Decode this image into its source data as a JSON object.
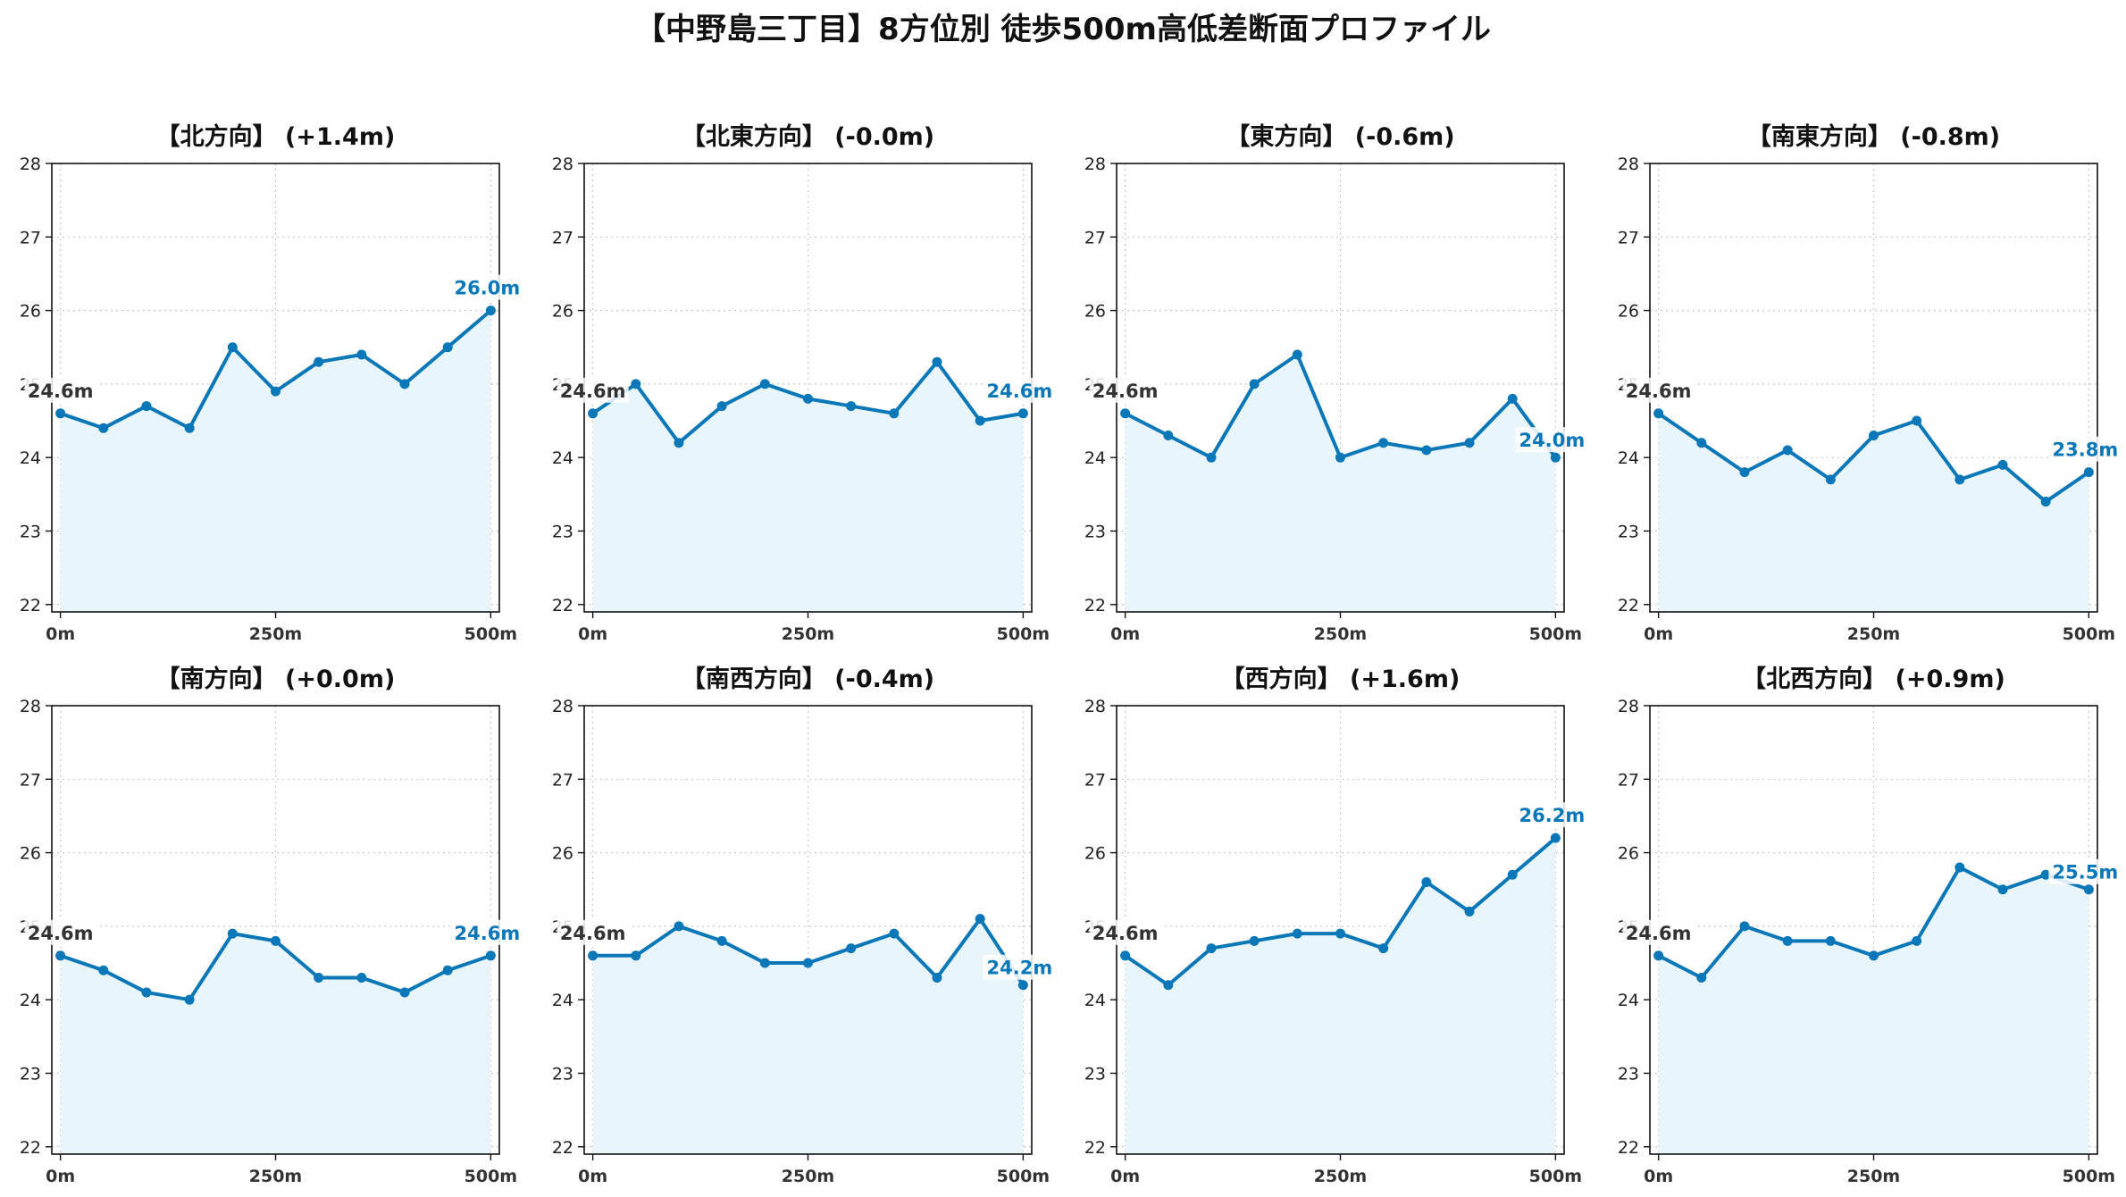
{
  "title": "【中野島三丁目】8方位別 徒歩500m高低差断面プロファイル",
  "colors": {
    "line": "#0a77b8",
    "fill": "#e8f6fc",
    "start_label": "#333333",
    "end_label": "#0a77b8"
  },
  "chart_data": [
    {
      "type": "area",
      "title": "【北方向】 (+1.4m)",
      "x": [
        0,
        50,
        100,
        150,
        200,
        250,
        300,
        350,
        400,
        450,
        500
      ],
      "y": [
        24.6,
        24.4,
        24.7,
        24.4,
        25.5,
        24.9,
        25.3,
        25.4,
        25.0,
        25.5,
        26.0
      ],
      "start_label": "24.6m",
      "end_label": "26.0m",
      "xticks": [
        0,
        250,
        500
      ],
      "xtick_labels": [
        "0m",
        "250m",
        "500m"
      ],
      "yticks": [
        22,
        23,
        24,
        25,
        26,
        27,
        28
      ],
      "ylim": [
        21.9,
        28.0
      ],
      "grid": true
    },
    {
      "type": "area",
      "title": "【北東方向】 (-0.0m)",
      "x": [
        0,
        50,
        100,
        150,
        200,
        250,
        300,
        350,
        400,
        450,
        500
      ],
      "y": [
        24.6,
        25.0,
        24.2,
        24.7,
        25.0,
        24.8,
        24.7,
        24.6,
        25.3,
        24.5,
        24.6
      ],
      "start_label": "24.6m",
      "end_label": "24.6m",
      "xticks": [
        0,
        250,
        500
      ],
      "xtick_labels": [
        "0m",
        "250m",
        "500m"
      ],
      "yticks": [
        22,
        23,
        24,
        25,
        26,
        27,
        28
      ],
      "ylim": [
        21.9,
        28.0
      ],
      "grid": true
    },
    {
      "type": "area",
      "title": "【東方向】 (-0.6m)",
      "x": [
        0,
        50,
        100,
        150,
        200,
        250,
        300,
        350,
        400,
        450,
        500
      ],
      "y": [
        24.6,
        24.3,
        24.0,
        25.0,
        25.4,
        24.0,
        24.2,
        24.1,
        24.2,
        24.8,
        24.0
      ],
      "start_label": "24.6m",
      "end_label": "24.0m",
      "xticks": [
        0,
        250,
        500
      ],
      "xtick_labels": [
        "0m",
        "250m",
        "500m"
      ],
      "yticks": [
        22,
        23,
        24,
        25,
        26,
        27,
        28
      ],
      "ylim": [
        21.9,
        28.0
      ],
      "grid": true
    },
    {
      "type": "area",
      "title": "【南東方向】 (-0.8m)",
      "x": [
        0,
        50,
        100,
        150,
        200,
        250,
        300,
        350,
        400,
        450,
        500
      ],
      "y": [
        24.6,
        24.2,
        23.8,
        24.1,
        23.7,
        24.3,
        24.5,
        23.7,
        23.9,
        23.4,
        23.8
      ],
      "start_label": "24.6m",
      "end_label": "23.8m",
      "xticks": [
        0,
        250,
        500
      ],
      "xtick_labels": [
        "0m",
        "250m",
        "500m"
      ],
      "yticks": [
        22,
        23,
        24,
        25,
        26,
        27,
        28
      ],
      "ylim": [
        21.9,
        28.0
      ],
      "grid": true
    },
    {
      "type": "area",
      "title": "【南方向】 (+0.0m)",
      "x": [
        0,
        50,
        100,
        150,
        200,
        250,
        300,
        350,
        400,
        450,
        500
      ],
      "y": [
        24.6,
        24.4,
        24.1,
        24.0,
        24.9,
        24.8,
        24.3,
        24.3,
        24.1,
        24.4,
        24.6
      ],
      "start_label": "24.6m",
      "end_label": "24.6m",
      "xticks": [
        0,
        250,
        500
      ],
      "xtick_labels": [
        "0m",
        "250m",
        "500m"
      ],
      "yticks": [
        22,
        23,
        24,
        25,
        26,
        27,
        28
      ],
      "ylim": [
        21.9,
        28.0
      ],
      "grid": true
    },
    {
      "type": "area",
      "title": "【南西方向】 (-0.4m)",
      "x": [
        0,
        50,
        100,
        150,
        200,
        250,
        300,
        350,
        400,
        450,
        500
      ],
      "y": [
        24.6,
        24.6,
        25.0,
        24.8,
        24.5,
        24.5,
        24.7,
        24.9,
        24.3,
        25.1,
        24.2
      ],
      "start_label": "24.6m",
      "end_label": "24.2m",
      "xticks": [
        0,
        250,
        500
      ],
      "xtick_labels": [
        "0m",
        "250m",
        "500m"
      ],
      "yticks": [
        22,
        23,
        24,
        25,
        26,
        27,
        28
      ],
      "ylim": [
        21.9,
        28.0
      ],
      "grid": true
    },
    {
      "type": "area",
      "title": "【西方向】 (+1.6m)",
      "x": [
        0,
        50,
        100,
        150,
        200,
        250,
        300,
        350,
        400,
        450,
        500
      ],
      "y": [
        24.6,
        24.2,
        24.7,
        24.8,
        24.9,
        24.9,
        24.7,
        25.6,
        25.2,
        25.7,
        26.2
      ],
      "start_label": "24.6m",
      "end_label": "26.2m",
      "xticks": [
        0,
        250,
        500
      ],
      "xtick_labels": [
        "0m",
        "250m",
        "500m"
      ],
      "yticks": [
        22,
        23,
        24,
        25,
        26,
        27,
        28
      ],
      "ylim": [
        21.9,
        28.0
      ],
      "grid": true
    },
    {
      "type": "area",
      "title": "【北西方向】 (+0.9m)",
      "x": [
        0,
        50,
        100,
        150,
        200,
        250,
        300,
        350,
        400,
        450,
        500
      ],
      "y": [
        24.6,
        24.3,
        25.0,
        24.8,
        24.8,
        24.6,
        24.8,
        25.8,
        25.5,
        25.7,
        25.5
      ],
      "start_label": "24.6m",
      "end_label": "25.5m",
      "xticks": [
        0,
        250,
        500
      ],
      "xtick_labels": [
        "0m",
        "250m",
        "500m"
      ],
      "yticks": [
        22,
        23,
        24,
        25,
        26,
        27,
        28
      ],
      "ylim": [
        21.9,
        28.0
      ],
      "grid": true
    }
  ]
}
